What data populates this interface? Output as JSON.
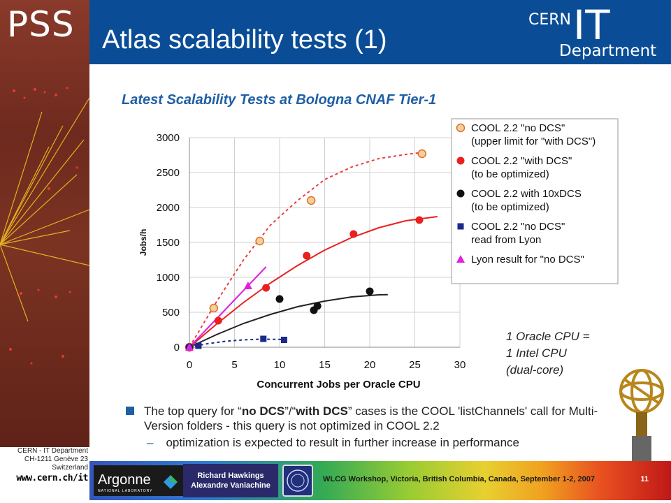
{
  "header": {
    "pss_logo": "PSS",
    "title": "Atlas scalability tests (1)",
    "cern_label": "CERN",
    "it_label": "IT",
    "department_label": "Department"
  },
  "left_footer": {
    "line1": "CERN - IT Department",
    "line2": "CH-1211 Genève 23",
    "line3": "Switzerland",
    "url": "www.cern.ch/it"
  },
  "chart_heading": "Latest Scalability Tests at Bologna CNAF Tier-1",
  "chart_data": {
    "type": "scatter",
    "title": "Latest Scalability Tests at Bologna CNAF Tier-1",
    "xlabel": "Concurrent Jobs per Oracle CPU",
    "ylabel": "Jobs/h",
    "xlim": [
      0,
      30
    ],
    "ylim": [
      0,
      3000
    ],
    "x_ticks": [
      "0",
      "5",
      "10",
      "15",
      "20",
      "25",
      "30"
    ],
    "y_ticks": [
      "0",
      "500",
      "1000",
      "1500",
      "2000",
      "2500",
      "3000"
    ],
    "grid": true,
    "legend_position": "top-right",
    "series": [
      {
        "name_lines": [
          "COOL 2.2 \"no DCS\"",
          "(upper limit for \"with DCS\")"
        ],
        "marker": "circle-open",
        "color": "#f1cfa0",
        "edge": "#e07020",
        "points": [
          [
            0,
            0
          ],
          [
            2.7,
            560
          ],
          [
            7.8,
            1520
          ],
          [
            13.5,
            2100
          ],
          [
            25.8,
            2770
          ]
        ],
        "trend": [
          [
            0,
            0
          ],
          [
            3,
            650
          ],
          [
            6,
            1250
          ],
          [
            9,
            1750
          ],
          [
            12,
            2100
          ],
          [
            15,
            2400
          ],
          [
            18,
            2580
          ],
          [
            21,
            2700
          ],
          [
            24,
            2760
          ],
          [
            26,
            2790
          ]
        ],
        "trend_color": "#e84040",
        "trend_dash": true
      },
      {
        "name_lines": [
          "COOL 2.2 \"with DCS\"",
          "(to be optimized)"
        ],
        "marker": "circle",
        "color": "#e82020",
        "points": [
          [
            0,
            0
          ],
          [
            3.2,
            380
          ],
          [
            8.5,
            850
          ],
          [
            13,
            1310
          ],
          [
            18.2,
            1620
          ],
          [
            25.5,
            1820
          ]
        ],
        "trend": [
          [
            0,
            0
          ],
          [
            3,
            330
          ],
          [
            6,
            640
          ],
          [
            9,
            920
          ],
          [
            12,
            1170
          ],
          [
            15,
            1390
          ],
          [
            18,
            1570
          ],
          [
            21,
            1710
          ],
          [
            24,
            1810
          ],
          [
            27.5,
            1870
          ]
        ],
        "trend_color": "#e82020",
        "trend_dash": false
      },
      {
        "name_lines": [
          "COOL 2.2 with 10xDCS",
          "(to be optimized)"
        ],
        "marker": "circle",
        "color": "#111111",
        "points": [
          [
            0,
            0
          ],
          [
            10,
            690
          ],
          [
            13.8,
            530
          ],
          [
            14.2,
            590
          ],
          [
            20,
            800
          ]
        ],
        "trend": [
          [
            0,
            0
          ],
          [
            3,
            180
          ],
          [
            6,
            340
          ],
          [
            9,
            470
          ],
          [
            12,
            580
          ],
          [
            15,
            660
          ],
          [
            18,
            720
          ],
          [
            21,
            750
          ],
          [
            22,
            752
          ]
        ],
        "trend_color": "#222222",
        "trend_dash": false
      },
      {
        "name_lines": [
          "COOL 2.2 \"no DCS\"",
          "read from Lyon"
        ],
        "marker": "square",
        "color": "#1a2a8a",
        "points": [
          [
            0,
            0
          ],
          [
            1,
            20
          ],
          [
            8.2,
            120
          ],
          [
            10.5,
            105
          ]
        ],
        "trend": [
          [
            0,
            0
          ],
          [
            2,
            50
          ],
          [
            4,
            85
          ],
          [
            6,
            105
          ],
          [
            8,
            115
          ],
          [
            11,
            110
          ]
        ],
        "trend_color": "#1a2a8a",
        "trend_dash": true
      },
      {
        "name_lines": [
          "Lyon result for \"no DCS\""
        ],
        "marker": "triangle",
        "color": "#e020e0",
        "points": [
          [
            0,
            0
          ],
          [
            6.5,
            880
          ]
        ],
        "trend": [
          [
            0,
            0
          ],
          [
            8.5,
            1150
          ]
        ],
        "trend_color": "#e020e0",
        "trend_dash": false
      }
    ],
    "annotation_lines": [
      "1 Oracle CPU  =",
      "1 Intel CPU",
      "(dual-core)"
    ]
  },
  "bullets": {
    "main_prefix": "The top query for “",
    "main_bold1": "no DCS",
    "main_mid": "”/“",
    "main_bold2": "with DCS",
    "main_suffix": "” cases is the COOL 'listChannels' call for Multi-Version folders - this query is not optimized in COOL 2.2",
    "sub": "optimization is expected to result in further increase in performance"
  },
  "banner": {
    "argonne": "Argonne",
    "argonne_sub": "NATIONAL LABORATORY",
    "speaker1": "Richard Hawkings",
    "speaker2": "Alexandre Vaniachine",
    "workshop": "WLCG Workshop, Victoria, British Columbia, Canada, September 1-2, 2007",
    "page": "11"
  }
}
